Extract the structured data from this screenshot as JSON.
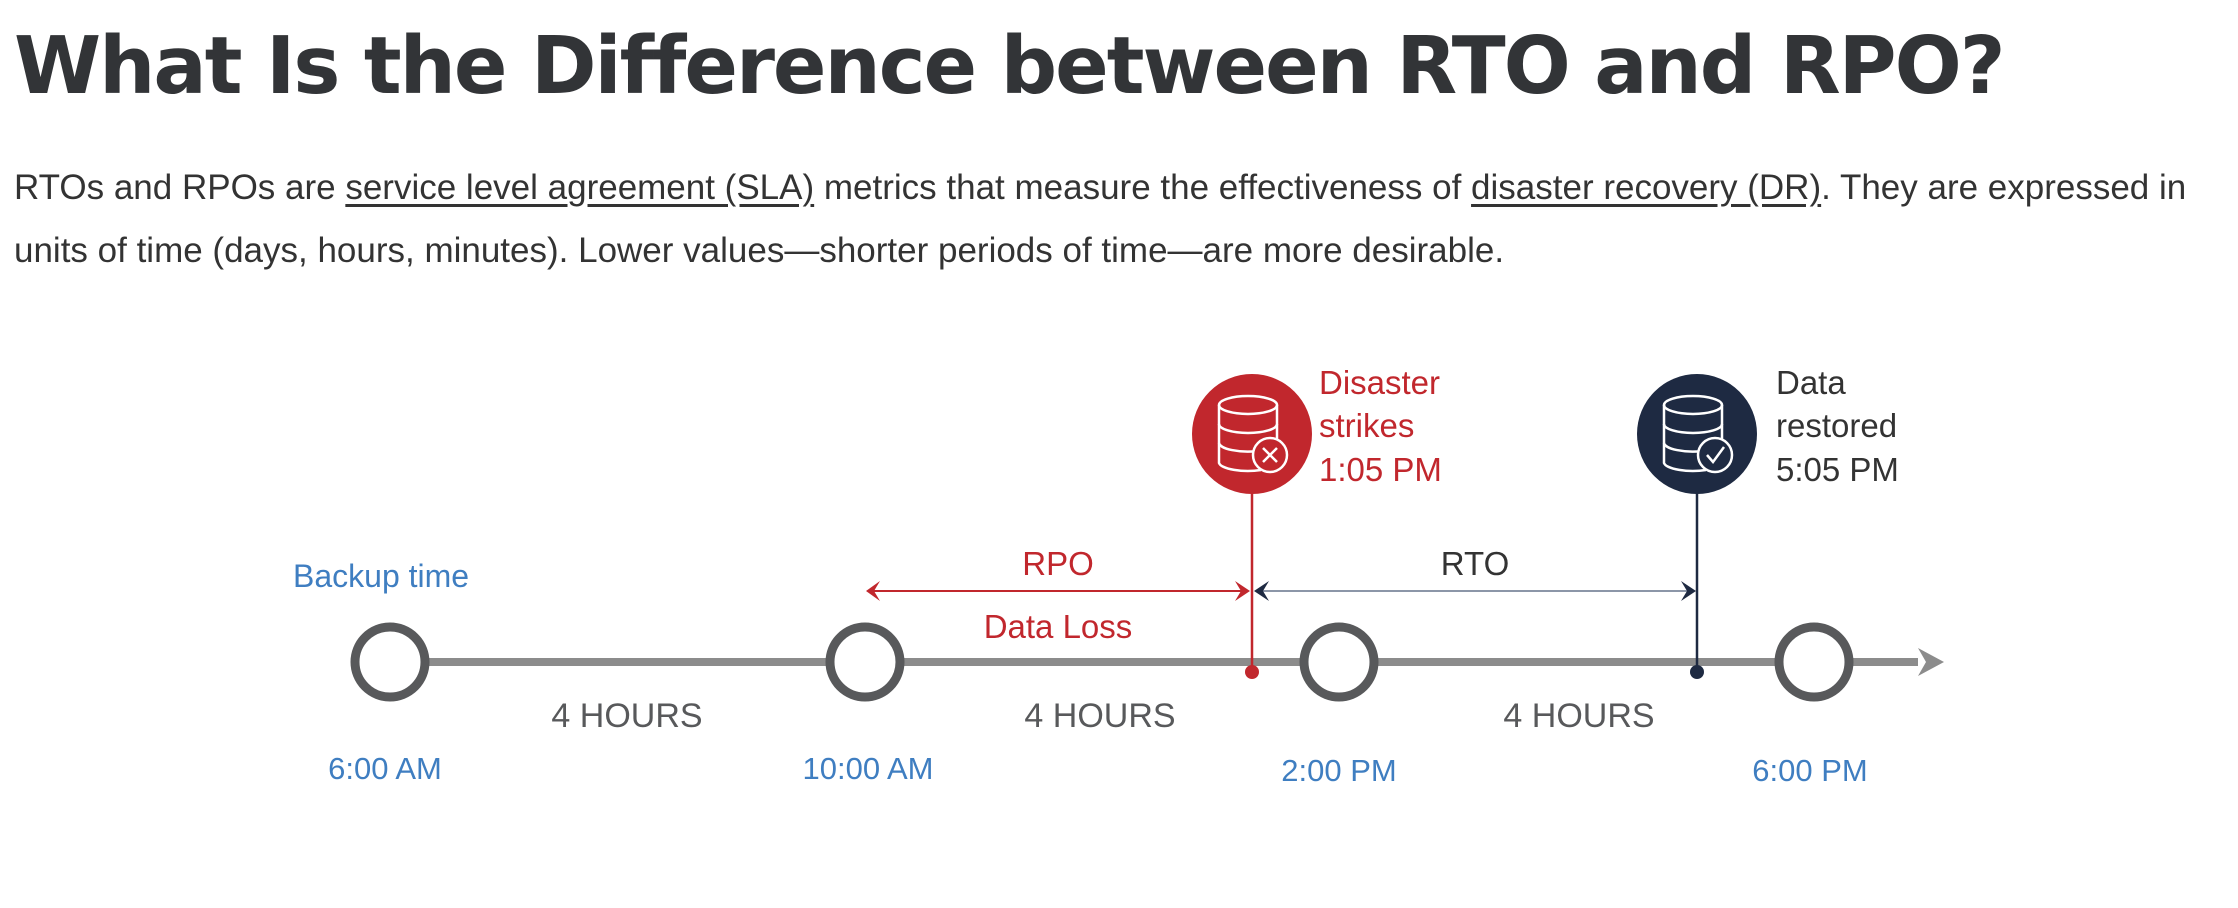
{
  "article": {
    "title": "What Is the Difference between RTO and RPO?",
    "intro": {
      "part1": "RTOs and RPOs are ",
      "link1": "service level agreement (SLA)",
      "part2": " metrics that measure the effectiveness of ",
      "link2": "disaster recovery (DR)",
      "part3": ". They are expressed in units of time (days, hours, minutes). Lower values—shorter periods of time—are more desirable."
    }
  },
  "diagram": {
    "backup_label": "Backup time",
    "time_labels": [
      "6:00 AM",
      "10:00 AM",
      "2:00 PM",
      "6:00 PM"
    ],
    "interval_label": "4 HOURS",
    "rpo_label": "RPO",
    "data_loss_label": "Data Loss",
    "rto_label": "RTO",
    "disaster_event": {
      "line1": "Disaster",
      "line2": "strikes",
      "line3": "1:05 PM",
      "icon": "database-error-icon"
    },
    "restore_event": {
      "line1": "Data",
      "line2": "restored",
      "line3": "5:05 PM",
      "icon": "database-check-icon"
    },
    "colors": {
      "timeline": "#8c8c8c",
      "circle_stroke": "#58595b",
      "blue_text": "#3f7ec1",
      "red": "#c1272d",
      "navy": "#1e2a42",
      "gray_text": "#58595b"
    }
  }
}
